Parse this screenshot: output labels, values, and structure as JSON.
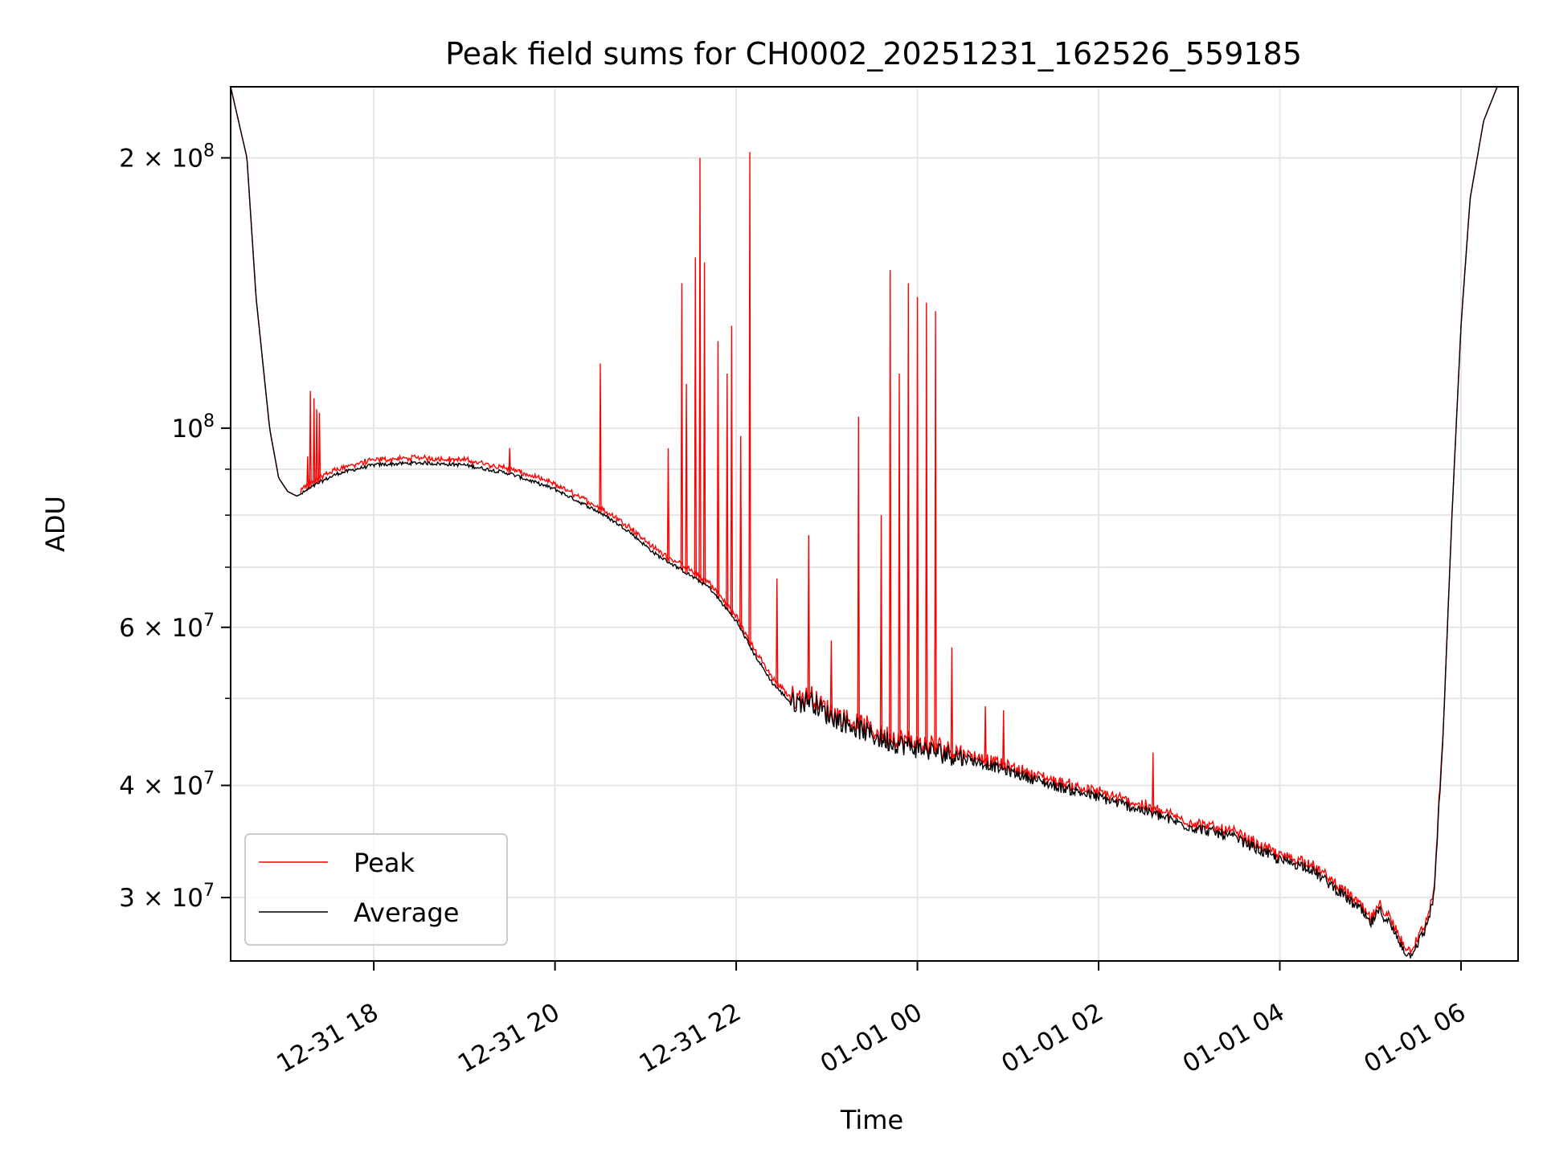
{
  "chart_data": {
    "type": "line",
    "title": "Peak field sums for CH0002_20251231_162526_559185",
    "xlabel": "Time",
    "ylabel": "ADU",
    "yscale": "log",
    "ylim": [
      25500000,
      240000000
    ],
    "xlim_hours": [
      -7.58,
      6.63
    ],
    "grid": true,
    "x_tick_labels": [
      "12-31 18",
      "12-31 20",
      "12-31 22",
      "01-01 00",
      "01-01 02",
      "01-01 04",
      "01-01 06"
    ],
    "x_tick_hours": [
      -6,
      -4,
      -2,
      0,
      2,
      4,
      6
    ],
    "y_major_ticks": [
      {
        "value": 30000000,
        "mantissa": "3",
        "exp": "7"
      },
      {
        "value": 40000000,
        "mantissa": "4",
        "exp": "7"
      },
      {
        "value": 60000000,
        "mantissa": "6",
        "exp": "7"
      },
      {
        "value": 100000000,
        "mantissa": "",
        "exp": "8"
      },
      {
        "value": 200000000,
        "mantissa": "2",
        "exp": "8"
      }
    ],
    "y_minor_ticks": [
      50000000,
      70000000,
      80000000,
      90000000
    ],
    "legend_position": "lower-left",
    "series": [
      {
        "name": "Average",
        "color": "#000000",
        "x_hours": [
          -7.58,
          -7.4,
          -7.3,
          -7.15,
          -7.05,
          -6.95,
          -6.85,
          -6.8,
          -6.6,
          -6.4,
          -6.2,
          -6.0,
          -5.5,
          -5.0,
          -4.5,
          -4.0,
          -3.5,
          -3.2,
          -2.9,
          -2.6,
          -2.3,
          -2.0,
          -1.8,
          -1.6,
          -1.4,
          -1.25,
          -1.2,
          -1.0,
          -0.8,
          -0.6,
          -0.4,
          -0.2,
          0.0,
          0.5,
          1.0,
          1.5,
          2.0,
          2.5,
          3.0,
          3.5,
          4.0,
          4.3,
          4.6,
          4.9,
          5.0,
          5.1,
          5.2,
          5.3,
          5.35,
          5.42,
          5.5,
          5.6,
          5.7,
          5.8,
          5.9,
          6.0,
          6.1,
          6.25,
          6.4,
          6.48,
          6.63
        ],
        "y_adu": [
          240000000,
          200000000,
          140000000,
          100000000,
          88000000,
          85000000,
          84000000,
          84500000,
          87000000,
          89000000,
          90000000,
          91000000,
          91500000,
          91000000,
          89000000,
          85500000,
          80500000,
          77000000,
          72500000,
          69500000,
          66500000,
          61000000,
          56000000,
          52000000,
          49500000,
          49500000,
          50000000,
          48000000,
          47000000,
          46000000,
          45000000,
          44500000,
          44000000,
          43000000,
          41500000,
          40000000,
          38800000,
          37500000,
          36000000,
          35000000,
          33000000,
          32500000,
          30800000,
          29000000,
          28000000,
          29000000,
          28200000,
          27000000,
          26500000,
          25800000,
          26500000,
          27500000,
          30000000,
          45000000,
          80000000,
          130000000,
          180000000,
          220000000,
          240000000,
          240000000,
          240000000
        ]
      },
      {
        "name": "Peak",
        "color": "#ff0000",
        "spikes": [
          {
            "hour": -6.73,
            "y_adu": 93000000
          },
          {
            "hour": -6.7,
            "y_adu": 110000000
          },
          {
            "hour": -6.66,
            "y_adu": 108000000
          },
          {
            "hour": -6.63,
            "y_adu": 105000000
          },
          {
            "hour": -6.6,
            "y_adu": 104000000
          },
          {
            "hour": -4.5,
            "y_adu": 95000000
          },
          {
            "hour": -3.5,
            "y_adu": 118000000
          },
          {
            "hour": -2.75,
            "y_adu": 95000000
          },
          {
            "hour": -2.6,
            "y_adu": 145000000
          },
          {
            "hour": -2.55,
            "y_adu": 112000000
          },
          {
            "hour": -2.45,
            "y_adu": 155000000
          },
          {
            "hour": -2.4,
            "y_adu": 200000000
          },
          {
            "hour": -2.35,
            "y_adu": 153000000
          },
          {
            "hour": -2.2,
            "y_adu": 125000000
          },
          {
            "hour": -2.1,
            "y_adu": 115000000
          },
          {
            "hour": -2.05,
            "y_adu": 130000000
          },
          {
            "hour": -1.95,
            "y_adu": 98000000
          },
          {
            "hour": -1.85,
            "y_adu": 203000000
          },
          {
            "hour": -1.55,
            "y_adu": 68000000
          },
          {
            "hour": -1.2,
            "y_adu": 76000000
          },
          {
            "hour": -0.95,
            "y_adu": 58000000
          },
          {
            "hour": -0.65,
            "y_adu": 103000000
          },
          {
            "hour": -0.4,
            "y_adu": 80000000
          },
          {
            "hour": -0.3,
            "y_adu": 150000000
          },
          {
            "hour": -0.2,
            "y_adu": 115000000
          },
          {
            "hour": -0.1,
            "y_adu": 145000000
          },
          {
            "hour": 0.0,
            "y_adu": 140000000
          },
          {
            "hour": 0.1,
            "y_adu": 138000000
          },
          {
            "hour": 0.2,
            "y_adu": 135000000
          },
          {
            "hour": 0.38,
            "y_adu": 57000000
          },
          {
            "hour": 0.75,
            "y_adu": 49000000
          },
          {
            "hour": 0.95,
            "y_adu": 48500000
          },
          {
            "hour": 2.6,
            "y_adu": 43500000
          }
        ]
      }
    ]
  }
}
